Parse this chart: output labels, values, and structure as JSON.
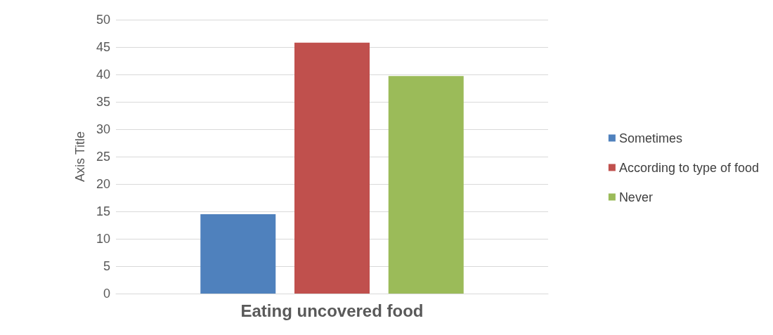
{
  "chart_data": {
    "type": "bar",
    "ylabel": "Axis Title",
    "categories": [
      "Eating uncovered food"
    ],
    "series": [
      {
        "name": "Sometimes",
        "color": "#4f81bd",
        "values": [
          14.5
        ]
      },
      {
        "name": "According to type of food",
        "color": "#c0504d",
        "values": [
          45.8
        ]
      },
      {
        "name": "Never",
        "color": "#9bbb59",
        "values": [
          39.7
        ]
      }
    ],
    "ylim": [
      0,
      50
    ],
    "yticks": [
      0,
      5,
      10,
      15,
      20,
      25,
      30,
      35,
      40,
      45,
      50
    ],
    "grid": "y",
    "legend": "right"
  }
}
